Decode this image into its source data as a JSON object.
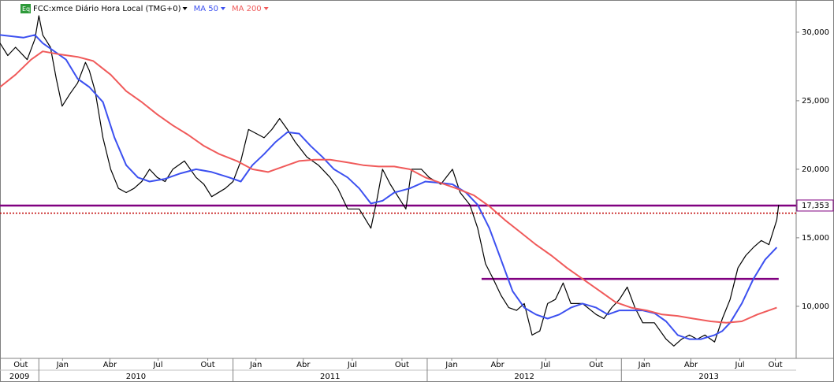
{
  "chart_data": {
    "type": "line",
    "title": "FCC:xmce Diário Hora Local (TMG+0)",
    "xlim": [
      2009.8,
      2013.9
    ],
    "ylim": [
      6200,
      32350
    ],
    "yticks": [
      {
        "value": 10000,
        "label": "10,000"
      },
      {
        "value": 15000,
        "label": "15,000"
      },
      {
        "value": 20000,
        "label": "20,000"
      },
      {
        "value": 25000,
        "label": "25,000"
      },
      {
        "value": 30000,
        "label": "30,000"
      }
    ],
    "xticks": [
      {
        "value": 2009.907,
        "label": "Out"
      },
      {
        "value": 2010.122,
        "label": "Jan"
      },
      {
        "value": 2010.366,
        "label": "Abr"
      },
      {
        "value": 2010.614,
        "label": "Jul"
      },
      {
        "value": 2010.87,
        "label": "Out"
      },
      {
        "value": 2011.118,
        "label": "Jan"
      },
      {
        "value": 2011.362,
        "label": "Abr"
      },
      {
        "value": 2011.614,
        "label": "Jul"
      },
      {
        "value": 2011.87,
        "label": "Out"
      },
      {
        "value": 2012.126,
        "label": "Jan"
      },
      {
        "value": 2012.362,
        "label": "Abr"
      },
      {
        "value": 2012.61,
        "label": "Jul"
      },
      {
        "value": 2012.87,
        "label": "Out"
      },
      {
        "value": 2013.118,
        "label": "Jan"
      },
      {
        "value": 2013.358,
        "label": "Abr"
      },
      {
        "value": 2013.61,
        "label": "Jul"
      },
      {
        "value": 2013.793,
        "label": "Out"
      }
    ],
    "year_ticks": [
      2009,
      2010,
      2011,
      2012,
      2013
    ],
    "grid": false,
    "series": [
      {
        "color": "#000000",
        "x": [
          2009.8,
          2009.84,
          2009.88,
          2009.94,
          2009.98,
          2010.0,
          2010.02,
          2010.06,
          2010.09,
          2010.12,
          2010.16,
          2010.2,
          2010.24,
          2010.26,
          2010.29,
          2010.33,
          2010.37,
          2010.41,
          2010.45,
          2010.49,
          2010.53,
          2010.57,
          2010.61,
          2010.65,
          2010.69,
          2010.75,
          2010.81,
          2010.85,
          2010.89,
          2010.96,
          2011.0,
          2011.04,
          2011.08,
          2011.12,
          2011.16,
          2011.2,
          2011.24,
          2011.28,
          2011.32,
          2011.38,
          2011.44,
          2011.5,
          2011.54,
          2011.59,
          2011.65,
          2011.71,
          2011.74,
          2011.77,
          2011.81,
          2011.85,
          2011.89,
          2011.92,
          2011.97,
          2012.01,
          2012.07,
          2012.13,
          2012.17,
          2012.22,
          2012.26,
          2012.3,
          2012.34,
          2012.38,
          2012.42,
          2012.46,
          2012.5,
          2012.54,
          2012.58,
          2012.62,
          2012.66,
          2012.7,
          2012.74,
          2012.8,
          2012.87,
          2012.91,
          2012.95,
          2012.99,
          2013.03,
          2013.07,
          2013.11,
          2013.17,
          2013.23,
          2013.27,
          2013.31,
          2013.35,
          2013.39,
          2013.43,
          2013.48,
          2013.52,
          2013.56,
          2013.6,
          2013.64,
          2013.68,
          2013.72,
          2013.76,
          2013.8,
          2013.81
        ],
        "values": [
          29200,
          28300,
          28900,
          28000,
          29500,
          31200,
          29800,
          28900,
          26600,
          24600,
          25500,
          26300,
          27800,
          27200,
          25700,
          22300,
          20000,
          18600,
          18300,
          18600,
          19100,
          20000,
          19400,
          19100,
          20000,
          20600,
          19400,
          18900,
          18000,
          18600,
          19100,
          20600,
          22900,
          22600,
          22300,
          22900,
          23700,
          22900,
          22000,
          20900,
          20300,
          19400,
          18600,
          17100,
          17100,
          15700,
          17700,
          20000,
          18900,
          18000,
          17100,
          20000,
          20000,
          19400,
          18900,
          20000,
          18300,
          17400,
          15700,
          13100,
          12000,
          10800,
          9900,
          9700,
          10200,
          7900,
          8200,
          10200,
          10500,
          11700,
          10200,
          10200,
          9400,
          9100,
          9900,
          10500,
          11400,
          9900,
          8800,
          8800,
          7600,
          7100,
          7600,
          7900,
          7600,
          7900,
          7400,
          9100,
          10500,
          12800,
          13700,
          14300,
          14800,
          14500,
          16300,
          17400
        ]
      },
      {
        "name": "MA 50",
        "color": "#3c50f0",
        "x": [
          2009.8,
          2009.92,
          2009.98,
          2010.02,
          2010.08,
          2010.14,
          2010.2,
          2010.26,
          2010.33,
          2010.39,
          2010.45,
          2010.51,
          2010.57,
          2010.65,
          2010.73,
          2010.81,
          2010.89,
          2010.98,
          2011.04,
          2011.1,
          2011.16,
          2011.22,
          2011.28,
          2011.34,
          2011.4,
          2011.46,
          2011.52,
          2011.59,
          2011.65,
          2011.71,
          2011.77,
          2011.83,
          2011.91,
          2011.99,
          2012.07,
          2012.13,
          2012.2,
          2012.26,
          2012.32,
          2012.38,
          2012.44,
          2012.5,
          2012.56,
          2012.62,
          2012.68,
          2012.74,
          2012.8,
          2012.87,
          2012.93,
          2012.99,
          2013.05,
          2013.11,
          2013.17,
          2013.23,
          2013.29,
          2013.35,
          2013.41,
          2013.48,
          2013.52,
          2013.56,
          2013.62,
          2013.68,
          2013.74,
          2013.8
        ],
        "values": [
          29800,
          29600,
          29800,
          29200,
          28600,
          28000,
          26600,
          26000,
          24900,
          22300,
          20300,
          19400,
          19100,
          19300,
          19700,
          20000,
          19800,
          19400,
          19100,
          20300,
          21100,
          22000,
          22700,
          22600,
          21700,
          20900,
          20000,
          19400,
          18600,
          17500,
          17700,
          18300,
          18600,
          19100,
          19000,
          18900,
          18300,
          17400,
          15700,
          13400,
          11100,
          9900,
          9400,
          9100,
          9400,
          9900,
          10200,
          9900,
          9400,
          9700,
          9700,
          9700,
          9500,
          8900,
          7900,
          7600,
          7600,
          7900,
          8200,
          8800,
          10200,
          12000,
          13400,
          14300
        ]
      },
      {
        "name": "MA 200",
        "color": "#f05a5a",
        "x": [
          2009.8,
          2009.88,
          2009.96,
          2010.02,
          2010.1,
          2010.2,
          2010.28,
          2010.37,
          2010.45,
          2010.53,
          2010.61,
          2010.69,
          2010.77,
          2010.85,
          2010.93,
          2011.02,
          2011.1,
          2011.18,
          2011.26,
          2011.34,
          2011.42,
          2011.5,
          2011.59,
          2011.67,
          2011.75,
          2011.83,
          2011.91,
          2011.99,
          2012.07,
          2012.15,
          2012.24,
          2012.32,
          2012.4,
          2012.48,
          2012.56,
          2012.64,
          2012.72,
          2012.8,
          2012.89,
          2012.97,
          2013.05,
          2013.13,
          2013.21,
          2013.29,
          2013.37,
          2013.46,
          2013.54,
          2013.62,
          2013.7,
          2013.8
        ],
        "values": [
          26000,
          26900,
          28000,
          28600,
          28400,
          28200,
          27900,
          26900,
          25700,
          24900,
          24000,
          23200,
          22500,
          21700,
          21100,
          20600,
          20000,
          19800,
          20200,
          20600,
          20700,
          20700,
          20500,
          20300,
          20200,
          20200,
          20000,
          19400,
          19000,
          18600,
          18100,
          17300,
          16300,
          15400,
          14500,
          13700,
          12800,
          12000,
          11100,
          10300,
          9900,
          9700,
          9400,
          9300,
          9100,
          8900,
          8800,
          8900,
          9400,
          9900
        ]
      }
    ],
    "hlines": [
      {
        "value": 17353,
        "label": "17,353",
        "color": "#800080"
      },
      {
        "value": 16800,
        "color": "#c00000",
        "style": "dotted"
      },
      {
        "value": 12000,
        "x": [
          2012.28,
          2013.81
        ],
        "color": "#800080"
      }
    ]
  }
}
